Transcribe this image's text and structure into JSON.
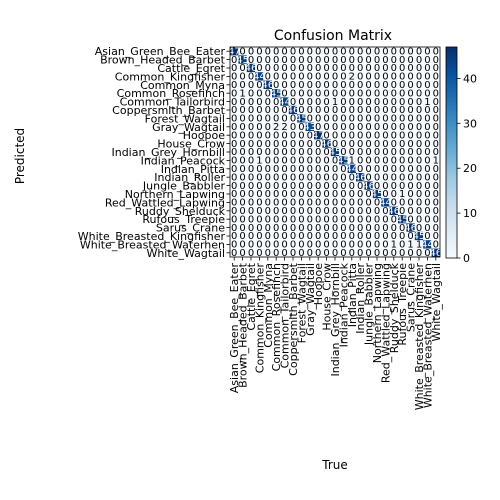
{
  "chart_data": {
    "type": "heatmap",
    "title": "Confusion Matrix",
    "xlabel": "True",
    "ylabel": "Predicted",
    "classes": [
      "Asian_Green_Bee_Eater",
      "Brown_Headed_Barbet",
      "Cattle_Egret",
      "Common_Kingfisher",
      "Common_Myna",
      "Common_Rosefinch",
      "Common_Tailorbird",
      "Coppersmith_Barbet",
      "Forest_Wagtail",
      "Gray_Wagtail",
      "Hoopoe",
      "House_Crow",
      "Indian_Grey_Hornbill",
      "Indian_Peacock",
      "Indian_Pitta",
      "Indian_Roller",
      "Jungle_Babbler",
      "Northern_Lapwing",
      "Red_Wattled_Lapwing",
      "Ruddy_Shelduck",
      "Rufous_Treepie",
      "Sarus_Crane",
      "White_Breasted_Kingfisher",
      "White_Breasted_Waterhen",
      "White_Wagtail"
    ],
    "matrix": [
      [
        47,
        0,
        0,
        0,
        0,
        0,
        0,
        0,
        0,
        0,
        0,
        0,
        0,
        0,
        0,
        0,
        0,
        0,
        0,
        0,
        0,
        0,
        0,
        0,
        0
      ],
      [
        0,
        45,
        0,
        0,
        0,
        0,
        0,
        0,
        0,
        0,
        0,
        0,
        0,
        0,
        0,
        0,
        0,
        0,
        0,
        0,
        0,
        0,
        0,
        0,
        0
      ],
      [
        0,
        0,
        46,
        0,
        0,
        0,
        0,
        0,
        0,
        0,
        0,
        0,
        0,
        0,
        0,
        0,
        0,
        0,
        0,
        0,
        0,
        0,
        0,
        0,
        0
      ],
      [
        0,
        0,
        0,
        44,
        0,
        0,
        0,
        0,
        0,
        0,
        0,
        0,
        0,
        0,
        2,
        0,
        0,
        0,
        0,
        0,
        0,
        0,
        0,
        0,
        0
      ],
      [
        0,
        0,
        0,
        0,
        46,
        0,
        0,
        0,
        0,
        0,
        0,
        0,
        0,
        0,
        0,
        0,
        0,
        0,
        0,
        0,
        0,
        0,
        0,
        0,
        0
      ],
      [
        0,
        1,
        0,
        0,
        0,
        45,
        0,
        0,
        0,
        0,
        0,
        0,
        0,
        0,
        0,
        0,
        0,
        0,
        0,
        0,
        0,
        0,
        0,
        0,
        0
      ],
      [
        0,
        0,
        0,
        0,
        0,
        0,
        44,
        0,
        0,
        0,
        0,
        0,
        1,
        0,
        0,
        0,
        0,
        0,
        0,
        0,
        0,
        0,
        0,
        1,
        0
      ],
      [
        0,
        0,
        0,
        0,
        0,
        0,
        0,
        46,
        0,
        0,
        0,
        0,
        0,
        0,
        0,
        0,
        0,
        0,
        0,
        0,
        0,
        0,
        0,
        0,
        0
      ],
      [
        0,
        0,
        0,
        0,
        0,
        0,
        0,
        0,
        45,
        0,
        0,
        0,
        0,
        0,
        0,
        0,
        0,
        0,
        0,
        0,
        0,
        0,
        0,
        0,
        0
      ],
      [
        0,
        0,
        0,
        0,
        0,
        2,
        2,
        0,
        0,
        43,
        0,
        0,
        0,
        0,
        0,
        0,
        0,
        0,
        0,
        0,
        0,
        0,
        0,
        0,
        0
      ],
      [
        0,
        0,
        0,
        0,
        0,
        0,
        0,
        0,
        0,
        0,
        47,
        0,
        0,
        0,
        0,
        0,
        0,
        0,
        0,
        0,
        0,
        0,
        0,
        0,
        0
      ],
      [
        0,
        0,
        0,
        0,
        0,
        0,
        0,
        0,
        0,
        0,
        0,
        46,
        0,
        0,
        0,
        0,
        0,
        0,
        0,
        0,
        0,
        0,
        0,
        0,
        0
      ],
      [
        0,
        0,
        0,
        0,
        0,
        0,
        0,
        0,
        0,
        0,
        0,
        0,
        45,
        0,
        0,
        0,
        0,
        0,
        0,
        0,
        0,
        0,
        0,
        0,
        0
      ],
      [
        0,
        0,
        0,
        1,
        0,
        0,
        0,
        0,
        0,
        0,
        0,
        0,
        0,
        45,
        1,
        0,
        0,
        0,
        0,
        0,
        0,
        0,
        0,
        0,
        1
      ],
      [
        0,
        0,
        0,
        0,
        0,
        0,
        0,
        0,
        0,
        0,
        0,
        0,
        0,
        0,
        44,
        0,
        0,
        0,
        0,
        0,
        0,
        0,
        0,
        0,
        0
      ],
      [
        0,
        0,
        0,
        0,
        0,
        0,
        0,
        0,
        0,
        0,
        0,
        0,
        0,
        0,
        0,
        46,
        0,
        0,
        0,
        0,
        0,
        0,
        0,
        0,
        0
      ],
      [
        0,
        0,
        0,
        0,
        0,
        0,
        0,
        0,
        0,
        0,
        0,
        0,
        0,
        0,
        0,
        0,
        46,
        0,
        0,
        0,
        0,
        0,
        0,
        0,
        0
      ],
      [
        0,
        0,
        0,
        0,
        0,
        0,
        0,
        0,
        0,
        0,
        0,
        0,
        0,
        0,
        0,
        0,
        0,
        45,
        0,
        0,
        1,
        0,
        0,
        0,
        0
      ],
      [
        0,
        0,
        0,
        0,
        0,
        0,
        0,
        0,
        0,
        0,
        0,
        0,
        0,
        0,
        0,
        0,
        0,
        0,
        44,
        0,
        0,
        0,
        0,
        0,
        0
      ],
      [
        0,
        0,
        0,
        0,
        0,
        0,
        0,
        0,
        0,
        0,
        0,
        0,
        0,
        0,
        0,
        0,
        0,
        0,
        0,
        46,
        0,
        0,
        0,
        0,
        0
      ],
      [
        0,
        0,
        0,
        0,
        0,
        0,
        0,
        0,
        0,
        0,
        0,
        0,
        0,
        0,
        0,
        0,
        0,
        0,
        0,
        0,
        45,
        0,
        0,
        0,
        0
      ],
      [
        0,
        0,
        0,
        0,
        0,
        0,
        0,
        0,
        0,
        0,
        0,
        0,
        0,
        0,
        0,
        0,
        0,
        0,
        0,
        0,
        0,
        46,
        0,
        0,
        0
      ],
      [
        0,
        0,
        0,
        0,
        0,
        0,
        0,
        0,
        0,
        0,
        0,
        0,
        0,
        0,
        0,
        0,
        0,
        0,
        0,
        0,
        0,
        0,
        45,
        0,
        0
      ],
      [
        0,
        0,
        0,
        0,
        0,
        0,
        0,
        0,
        0,
        0,
        0,
        0,
        0,
        0,
        0,
        0,
        0,
        0,
        0,
        1,
        0,
        1,
        1,
        44,
        0
      ],
      [
        0,
        0,
        0,
        0,
        0,
        0,
        0,
        0,
        0,
        0,
        0,
        0,
        0,
        0,
        0,
        0,
        0,
        0,
        0,
        0,
        0,
        0,
        0,
        0,
        46
      ]
    ],
    "colorbar": {
      "ticks": [
        0,
        10,
        20,
        30,
        40
      ],
      "range": [
        0,
        47
      ]
    },
    "colormap": "Blues",
    "grid": false
  }
}
